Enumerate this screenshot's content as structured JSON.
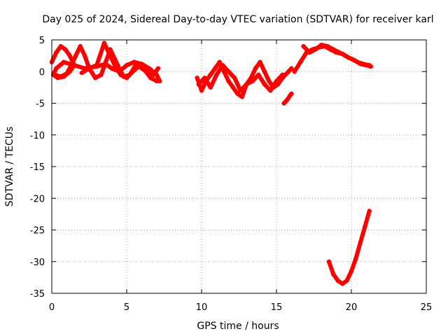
{
  "chart_data": {
    "type": "scatter",
    "title": "Day 025 of 2024, Sidereal Day-to-day VTEC variation (SDTVAR) for receiver karl",
    "xlabel": "GPS time / hours",
    "ylabel": "SDTVAR / TECUs",
    "xlim": [
      0,
      25
    ],
    "ylim": [
      -35,
      5
    ],
    "xticks": [
      "0",
      "5",
      "10",
      "15",
      "20",
      "25"
    ],
    "yticks": [
      "5",
      "0",
      "-5",
      "-10",
      "-15",
      "-20",
      "-25",
      "-30",
      "-35"
    ],
    "grid": true,
    "legend": "none",
    "color": "#ff0000",
    "series": [
      {
        "x": [
          0.0,
          0.3,
          0.6,
          0.9,
          1.2,
          1.5,
          1.2,
          0.8,
          0.4,
          0.1,
          0.3,
          0.8,
          1.5,
          2.2,
          3.0,
          3.6,
          4.0,
          4.5,
          5.0,
          5.5,
          6.0,
          6.5,
          7.0,
          7.2
        ],
        "y": [
          1.5,
          3.0,
          4.0,
          3.5,
          2.5,
          1.0,
          0.0,
          -0.8,
          -1.0,
          -0.5,
          0.5,
          1.5,
          1.0,
          0.5,
          0.8,
          1.2,
          0.5,
          0.0,
          1.0,
          1.5,
          1.2,
          0.5,
          -0.5,
          -1.5
        ]
      },
      {
        "x": [
          0.2,
          0.6,
          1.0,
          1.3,
          1.6,
          1.9,
          2.2,
          2.5,
          2.9,
          3.3,
          3.6,
          3.9,
          4.2,
          4.5,
          4.8,
          5.2,
          5.6,
          6.0,
          6.4,
          6.8,
          7.1
        ],
        "y": [
          -0.5,
          -0.8,
          -0.3,
          1.0,
          2.5,
          4.0,
          2.5,
          0.5,
          -1.0,
          -0.5,
          1.5,
          3.5,
          2.0,
          0.5,
          -0.8,
          -0.5,
          1.0,
          1.2,
          0.5,
          -0.5,
          0.5
        ]
      },
      {
        "x": [
          2.0,
          2.5,
          3.0,
          3.5,
          3.8,
          4.2,
          4.6,
          5.0,
          5.4,
          5.8,
          6.2,
          6.6,
          7.0
        ],
        "y": [
          -0.2,
          0.5,
          1.0,
          4.5,
          3.0,
          1.0,
          -0.5,
          -1.0,
          0.0,
          0.8,
          0.2,
          -1.0,
          -1.5
        ]
      },
      {
        "x": [
          9.7,
          10.0,
          10.3,
          10.6,
          10.9,
          11.2,
          11.5,
          11.8,
          12.1,
          12.4,
          12.7,
          13.0,
          13.3,
          13.6,
          13.9,
          14.2,
          14.5,
          14.8,
          15.1,
          15.4,
          15.8,
          16.0
        ],
        "y": [
          -1.0,
          -3.0,
          -1.5,
          -0.5,
          0.5,
          1.5,
          0.0,
          -1.5,
          -2.5,
          -3.5,
          -4.0,
          -2.0,
          -1.0,
          0.5,
          1.5,
          0.0,
          -1.5,
          -2.5,
          -2.0,
          -1.0,
          0.0,
          0.5
        ]
      },
      {
        "x": [
          9.8,
          10.2,
          10.6,
          11.0,
          11.4,
          11.8,
          12.2,
          12.6,
          13.0,
          13.4,
          13.8,
          14.2,
          14.6,
          15.0,
          15.4
        ],
        "y": [
          -2.0,
          -1.0,
          -2.5,
          -0.5,
          1.0,
          0.0,
          -1.0,
          -3.0,
          -2.0,
          -1.5,
          -0.5,
          -2.0,
          -3.0,
          -1.5,
          -0.5
        ]
      },
      {
        "x": [
          15.5,
          15.7,
          15.9,
          16.0
        ],
        "y": [
          -5.0,
          -4.5,
          -3.8,
          -3.5
        ]
      },
      {
        "x": [
          16.2,
          16.6,
          17.0,
          17.4,
          17.8,
          18.2,
          18.6,
          19.0,
          19.4,
          19.8,
          20.2,
          20.6,
          21.0,
          21.3
        ],
        "y": [
          0.0,
          1.5,
          3.0,
          3.5,
          3.8,
          4.0,
          3.5,
          3.0,
          2.8,
          2.2,
          1.8,
          1.2,
          1.0,
          0.8
        ]
      },
      {
        "x": [
          16.8,
          17.2,
          17.6,
          18.0,
          18.4,
          18.8,
          19.2,
          19.6,
          20.0,
          20.4,
          20.8,
          21.2
        ],
        "y": [
          4.0,
          3.0,
          3.5,
          4.2,
          4.0,
          3.5,
          3.0,
          2.5,
          2.0,
          1.5,
          1.2,
          1.0
        ]
      },
      {
        "x": [
          18.5,
          18.8,
          19.1,
          19.4,
          19.7,
          20.0,
          20.3,
          20.6,
          20.9,
          21.2
        ],
        "y": [
          -30.0,
          -32.0,
          -33.0,
          -33.5,
          -33.0,
          -31.5,
          -29.5,
          -27.0,
          -24.5,
          -22.0
        ]
      }
    ]
  }
}
